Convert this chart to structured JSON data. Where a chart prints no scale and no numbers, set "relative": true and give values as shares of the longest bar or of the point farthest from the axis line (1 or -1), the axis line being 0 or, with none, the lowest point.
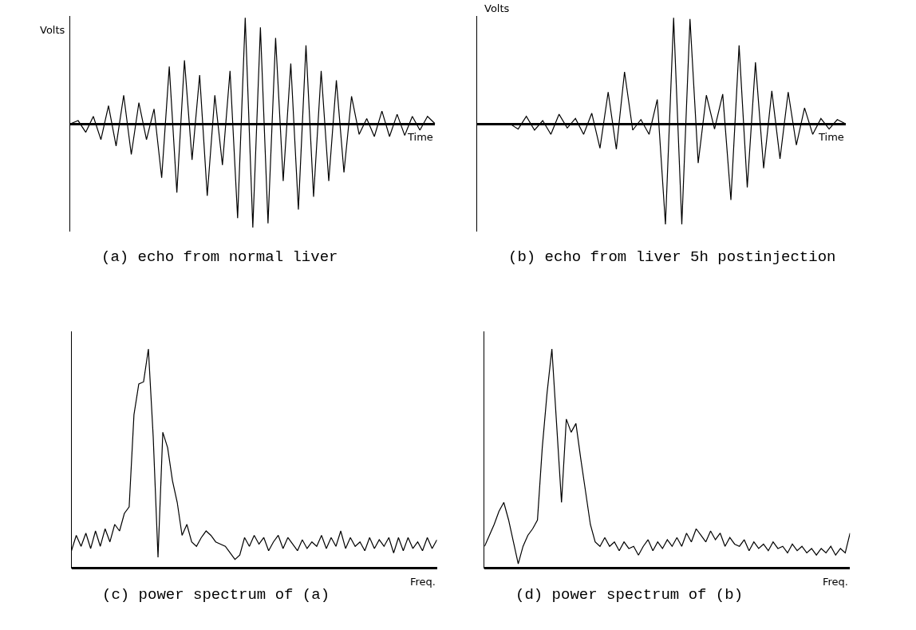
{
  "chart_data": [
    {
      "type": "line",
      "title": "(a) echo from normal liver",
      "xlabel": "Time",
      "ylabel": "Volts",
      "relative": true,
      "categories": [
        null,
        null,
        null,
        null,
        null,
        null,
        null,
        null,
        null,
        null,
        null,
        null,
        null,
        null,
        null,
        null,
        null,
        null,
        null,
        null,
        null,
        null,
        null,
        null,
        null,
        null,
        null,
        null,
        null,
        null,
        null,
        null,
        null,
        null,
        null,
        null,
        null,
        null,
        null,
        null,
        null,
        null,
        null,
        null,
        null,
        null,
        null,
        null,
        null
      ],
      "series": [
        {
          "color": "#000000",
          "values": [
            0,
            0.03,
            -0.08,
            0.07,
            -0.15,
            0.17,
            -0.21,
            0.27,
            -0.29,
            0.2,
            -0.15,
            0.14,
            -0.51,
            0.54,
            -0.65,
            0.6,
            -0.34,
            0.46,
            -0.68,
            0.27,
            -0.39,
            0.5,
            -0.89,
            1.0,
            -0.98,
            0.91,
            -0.94,
            0.81,
            -0.54,
            0.57,
            -0.81,
            0.74,
            -0.69,
            0.5,
            -0.54,
            0.41,
            -0.46,
            0.26,
            -0.1,
            0.05,
            -0.12,
            0.12,
            -0.12,
            0.09,
            -0.11,
            0.07,
            -0.06,
            0.07,
            0
          ]
        }
      ]
    },
    {
      "type": "line",
      "title": "(b) echo from liver 5h postinjection",
      "xlabel": "Time",
      "ylabel": "Volts",
      "relative": true,
      "categories": [
        null,
        null,
        null,
        null,
        null,
        null,
        null,
        null,
        null,
        null,
        null,
        null,
        null,
        null,
        null,
        null,
        null,
        null,
        null,
        null,
        null,
        null,
        null,
        null,
        null,
        null,
        null,
        null,
        null,
        null,
        null,
        null,
        null,
        null,
        null,
        null,
        null,
        null,
        null,
        null,
        null,
        null,
        null,
        null,
        null,
        null
      ],
      "series": [
        {
          "color": "#000000",
          "values": [
            0,
            0,
            0,
            0,
            0,
            -0.05,
            0.07,
            -0.06,
            0.03,
            -0.1,
            0.09,
            -0.04,
            0.05,
            -0.1,
            0.1,
            -0.23,
            0.3,
            -0.24,
            0.49,
            -0.06,
            0.04,
            -0.1,
            0.23,
            -0.95,
            1.0,
            -0.95,
            0.99,
            -0.37,
            0.27,
            -0.05,
            0.28,
            -0.72,
            0.74,
            -0.6,
            0.58,
            -0.42,
            0.31,
            -0.33,
            0.3,
            -0.2,
            0.15,
            -0.1,
            0.05,
            -0.05,
            0.04,
            0
          ]
        }
      ]
    },
    {
      "type": "line",
      "title": "(c) power spectrum of (a)",
      "xlabel": "Freq.",
      "relative": true,
      "categories": [
        null,
        null,
        null,
        null,
        null,
        null,
        null,
        null,
        null,
        null,
        null,
        null,
        null,
        null,
        null,
        null,
        null,
        null,
        null,
        null,
        null,
        null,
        null,
        null,
        null,
        null,
        null,
        null,
        null,
        null,
        null,
        null,
        null,
        null,
        null,
        null,
        null,
        null,
        null,
        null,
        null,
        null,
        null,
        null,
        null,
        null,
        null,
        null,
        null,
        null,
        null,
        null,
        null,
        null,
        null,
        null,
        null,
        null,
        null,
        null,
        null,
        null,
        null,
        null,
        null,
        null,
        null,
        null,
        null,
        null,
        null,
        null,
        null,
        null,
        null,
        null,
        null
      ],
      "series": [
        {
          "color": "#000000",
          "values": [
            0.08,
            0.15,
            0.1,
            0.16,
            0.09,
            0.17,
            0.1,
            0.18,
            0.12,
            0.2,
            0.17,
            0.25,
            0.28,
            0.7,
            0.84,
            0.85,
            1.0,
            0.6,
            0.05,
            0.62,
            0.55,
            0.4,
            0.3,
            0.15,
            0.2,
            0.12,
            0.1,
            0.14,
            0.17,
            0.15,
            0.12,
            0.11,
            0.1,
            0.07,
            0.04,
            0.06,
            0.14,
            0.1,
            0.15,
            0.11,
            0.14,
            0.08,
            0.12,
            0.15,
            0.09,
            0.14,
            0.11,
            0.08,
            0.13,
            0.09,
            0.12,
            0.1,
            0.15,
            0.09,
            0.14,
            0.1,
            0.17,
            0.09,
            0.14,
            0.1,
            0.12,
            0.08,
            0.14,
            0.09,
            0.13,
            0.1,
            0.14,
            0.07,
            0.14,
            0.08,
            0.14,
            0.09,
            0.12,
            0.08,
            0.14,
            0.09,
            0.13
          ]
        }
      ]
    },
    {
      "type": "line",
      "title": "(d) power spectrum of (b)",
      "xlabel": "Freq.",
      "relative": true,
      "categories": [
        null,
        null,
        null,
        null,
        null,
        null,
        null,
        null,
        null,
        null,
        null,
        null,
        null,
        null,
        null,
        null,
        null,
        null,
        null,
        null,
        null,
        null,
        null,
        null,
        null,
        null,
        null,
        null,
        null,
        null,
        null,
        null,
        null,
        null,
        null,
        null,
        null,
        null,
        null,
        null,
        null,
        null,
        null,
        null,
        null,
        null,
        null,
        null,
        null,
        null,
        null,
        null,
        null,
        null,
        null,
        null,
        null,
        null,
        null,
        null,
        null,
        null,
        null,
        null,
        null,
        null,
        null,
        null,
        null,
        null,
        null,
        null,
        null,
        null,
        null,
        null,
        null
      ],
      "series": [
        {
          "color": "#000000",
          "values": [
            0.1,
            0.15,
            0.2,
            0.26,
            0.3,
            0.22,
            0.12,
            0.02,
            0.1,
            0.15,
            0.18,
            0.22,
            0.55,
            0.8,
            1.0,
            0.65,
            0.3,
            0.68,
            0.62,
            0.66,
            0.5,
            0.35,
            0.2,
            0.12,
            0.1,
            0.14,
            0.1,
            0.12,
            0.08,
            0.12,
            0.09,
            0.1,
            0.06,
            0.1,
            0.13,
            0.08,
            0.12,
            0.09,
            0.13,
            0.1,
            0.14,
            0.1,
            0.16,
            0.12,
            0.18,
            0.15,
            0.12,
            0.17,
            0.13,
            0.16,
            0.1,
            0.14,
            0.11,
            0.1,
            0.13,
            0.08,
            0.12,
            0.09,
            0.11,
            0.08,
            0.12,
            0.09,
            0.1,
            0.07,
            0.11,
            0.08,
            0.1,
            0.07,
            0.09,
            0.06,
            0.09,
            0.07,
            0.1,
            0.06,
            0.09,
            0.07,
            0.16
          ]
        }
      ]
    }
  ]
}
